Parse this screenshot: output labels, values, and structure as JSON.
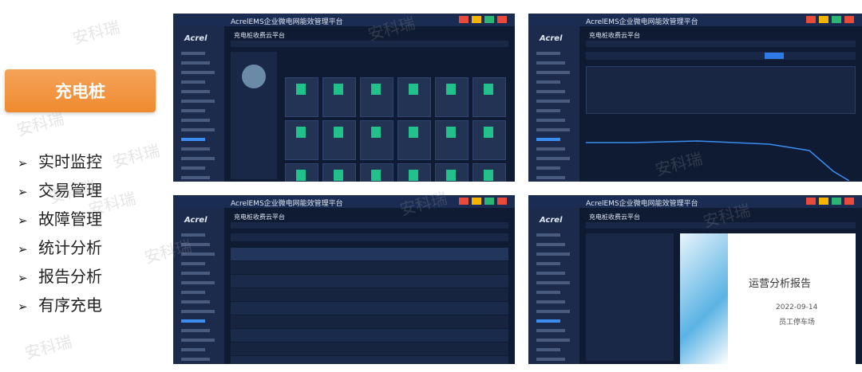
{
  "button": "充电桩",
  "features": [
    "实时监控",
    "交易管理",
    "故障管理",
    "统计分析",
    "报告分析",
    "有序充电"
  ],
  "watermark": "安科瑞",
  "app": {
    "title": "AcrelEMS企业微电网能效管理平台",
    "logo": "Acrel",
    "page_title": "充电桩收费云平台"
  },
  "report": {
    "title": "运营分析报告",
    "date": "2022-09-14",
    "location": "员工停车场"
  }
}
